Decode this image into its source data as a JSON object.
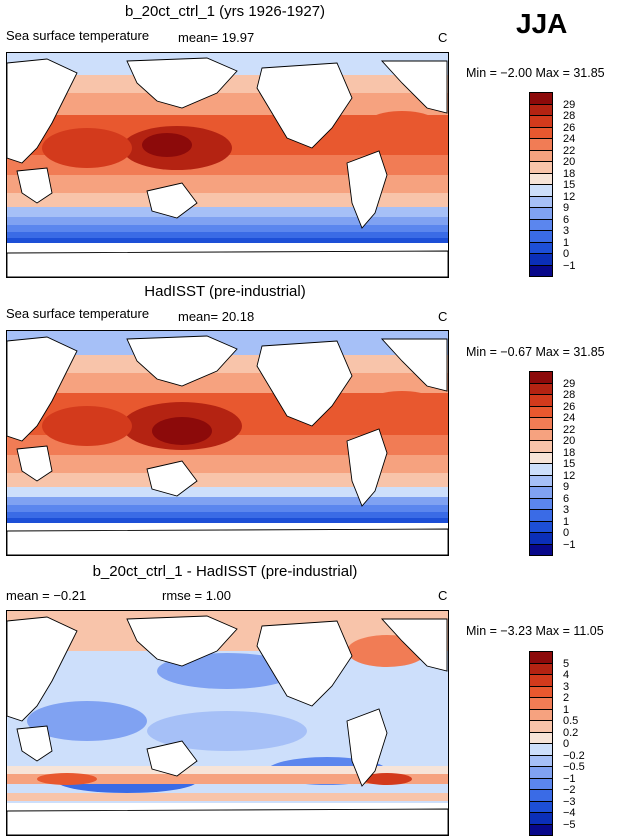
{
  "season": "JJA",
  "colors": {
    "sst": [
      "#08088a",
      "#0b2fb8",
      "#1d4fd7",
      "#3a6be6",
      "#5b86ee",
      "#80a2f2",
      "#a6c0f7",
      "#cddffb",
      "#f7e4d8",
      "#f8c4aa",
      "#f6a27f",
      "#f17c55",
      "#e8582f",
      "#d33a1c",
      "#b42312",
      "#8c0a0a"
    ],
    "diff": [
      "#08088a",
      "#0b2fb8",
      "#1d4fd7",
      "#3a6be6",
      "#5b86ee",
      "#80a2f2",
      "#a6c0f7",
      "#cddffb",
      "#f7e4d8",
      "#f8c4aa",
      "#f6a27f",
      "#f17c55",
      "#e8582f",
      "#d33a1c",
      "#b42312",
      "#8c0a0a"
    ]
  },
  "panels": [
    {
      "title": "b_20ct_ctrl_1 (yrs 1926-1927)",
      "left_text": "Sea surface temperature",
      "stat_text": "mean=   19.97",
      "units": "C",
      "minmax": "Min =  −2.00  Max =  31.85",
      "colorbar_labels": [
        "29",
        "28",
        "26",
        "24",
        "22",
        "20",
        "18",
        "15",
        "12",
        "9",
        "6",
        "3",
        "1",
        "0",
        "−1"
      ]
    },
    {
      "title": "HadISST (pre-industrial)",
      "left_text": "Sea surface temperature",
      "stat_text": "mean=   20.18",
      "units": "C",
      "minmax": "Min =  −0.67  Max =  31.85",
      "colorbar_labels": [
        "29",
        "28",
        "26",
        "24",
        "22",
        "20",
        "18",
        "15",
        "12",
        "9",
        "6",
        "3",
        "1",
        "0",
        "−1"
      ]
    },
    {
      "title": "b_20ct_ctrl_1 - HadISST (pre-industrial)",
      "left_text": "mean =   −0.21",
      "stat_text": "rmse =    1.00",
      "units": "C",
      "minmax": "Min =  −3.23  Max =  11.05",
      "colorbar_labels": [
        "5",
        "4",
        "3",
        "2",
        "1",
        "0.5",
        "0.2",
        "0",
        "−0.2",
        "−0.5",
        "−1",
        "−2",
        "−3",
        "−4",
        "−5"
      ]
    }
  ]
}
